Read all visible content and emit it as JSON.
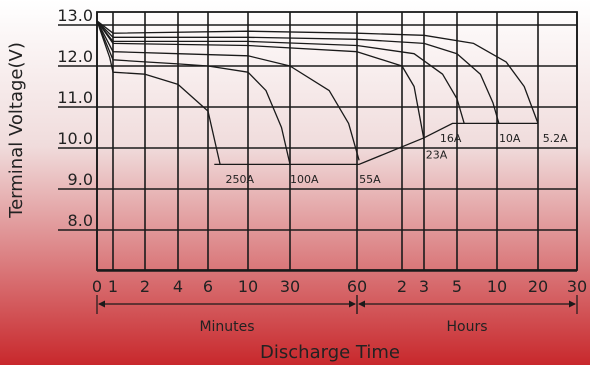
{
  "chart_data": {
    "type": "line",
    "title": "",
    "ylabel": "Terminal Voltage(V)",
    "xlabel": "Discharge Time",
    "ylim": [
      7.0,
      13.5
    ],
    "grid": true,
    "y_ticks": [
      {
        "value": 13.0,
        "label": "13.0"
      },
      {
        "value": 12.0,
        "label": "12.0"
      },
      {
        "value": 11.0,
        "label": "11.0"
      },
      {
        "value": 10.0,
        "label": "10.0"
      },
      {
        "value": 9.0,
        "label": "9.0"
      },
      {
        "value": 8.0,
        "label": "8.0"
      }
    ],
    "x_ticks": [
      {
        "label": "0",
        "t_min": 0
      },
      {
        "label": "1",
        "t_min": 1
      },
      {
        "label": "2",
        "t_min": 2
      },
      {
        "label": "4",
        "t_min": 4
      },
      {
        "label": "6",
        "t_min": 6
      },
      {
        "label": "10",
        "t_min": 10
      },
      {
        "label": "30",
        "t_min": 30
      },
      {
        "label": "60",
        "t_min": 60
      },
      {
        "label": "2",
        "t_min": 120
      },
      {
        "label": "3",
        "t_min": 180
      },
      {
        "label": "5",
        "t_min": 300
      },
      {
        "label": "10",
        "t_min": 600
      },
      {
        "label": "20",
        "t_min": 1200
      },
      {
        "label": "30",
        "t_min": 1800
      }
    ],
    "x_sections": [
      {
        "label": "Minutes",
        "from_min": 0,
        "to_min": 60
      },
      {
        "label": "Hours",
        "from_min": 60,
        "to_min": 1800
      }
    ],
    "series": [
      {
        "name": "250A",
        "points": [
          [
            0,
            13.1
          ],
          [
            0.8,
            12.2
          ],
          [
            1,
            11.85
          ],
          [
            2,
            11.8
          ],
          [
            4,
            11.55
          ],
          [
            6,
            10.9
          ],
          [
            7,
            9.6
          ]
        ],
        "label_at": [
          7.5,
          9.15
        ]
      },
      {
        "name": "100A",
        "points": [
          [
            0,
            13.1
          ],
          [
            1,
            12.15
          ],
          [
            2,
            12.1
          ],
          [
            4,
            12.05
          ],
          [
            6,
            12.0
          ],
          [
            10,
            11.85
          ],
          [
            16,
            11.4
          ],
          [
            24,
            10.5
          ],
          [
            30,
            9.6
          ]
        ],
        "label_at": [
          30,
          9.15
        ]
      },
      {
        "name": "55A",
        "points": [
          [
            0,
            13.1
          ],
          [
            1,
            12.35
          ],
          [
            4,
            12.3
          ],
          [
            10,
            12.25
          ],
          [
            30,
            12.0
          ],
          [
            45,
            11.4
          ],
          [
            55,
            10.6
          ],
          [
            62,
            9.7
          ]
        ],
        "label_at": [
          62,
          9.15
        ]
      },
      {
        "name": "23A",
        "points": [
          [
            0,
            13.1
          ],
          [
            1,
            12.55
          ],
          [
            10,
            12.5
          ],
          [
            60,
            12.35
          ],
          [
            120,
            12.0
          ],
          [
            150,
            11.5
          ],
          [
            180,
            10.2
          ]
        ],
        "label_at": [
          185,
          9.75
        ]
      },
      {
        "name": "16A",
        "points": [
          [
            0,
            13.1
          ],
          [
            1,
            12.6
          ],
          [
            10,
            12.6
          ],
          [
            60,
            12.5
          ],
          [
            150,
            12.3
          ],
          [
            240,
            11.8
          ],
          [
            300,
            11.2
          ],
          [
            340,
            10.6
          ]
        ],
        "label_at": [
          230,
          10.15
        ]
      },
      {
        "name": "10A",
        "points": [
          [
            0,
            13.1
          ],
          [
            1,
            12.7
          ],
          [
            10,
            12.7
          ],
          [
            60,
            12.65
          ],
          [
            180,
            12.55
          ],
          [
            300,
            12.3
          ],
          [
            450,
            11.8
          ],
          [
            560,
            11.1
          ],
          [
            620,
            10.6
          ]
        ],
        "label_at": [
          620,
          10.15
        ]
      },
      {
        "name": "5.2A",
        "points": [
          [
            0,
            13.1
          ],
          [
            1,
            12.8
          ],
          [
            10,
            12.85
          ],
          [
            60,
            12.8
          ],
          [
            180,
            12.75
          ],
          [
            400,
            12.55
          ],
          [
            700,
            12.1
          ],
          [
            950,
            11.5
          ],
          [
            1200,
            10.6
          ]
        ],
        "label_at": [
          1260,
          10.15
        ]
      }
    ],
    "cutoff_line": {
      "points": [
        [
          6.5,
          9.6
        ],
        [
          30,
          9.6
        ],
        [
          62,
          9.6
        ],
        [
          180,
          10.25
        ],
        [
          280,
          10.6
        ],
        [
          1200,
          10.6
        ]
      ]
    }
  },
  "colors": {
    "background_top": "#ffffff",
    "background_bottom": "#c8282c",
    "grid": "#1a1a1a",
    "curve": "#1a1a1a",
    "text": "#222222"
  }
}
